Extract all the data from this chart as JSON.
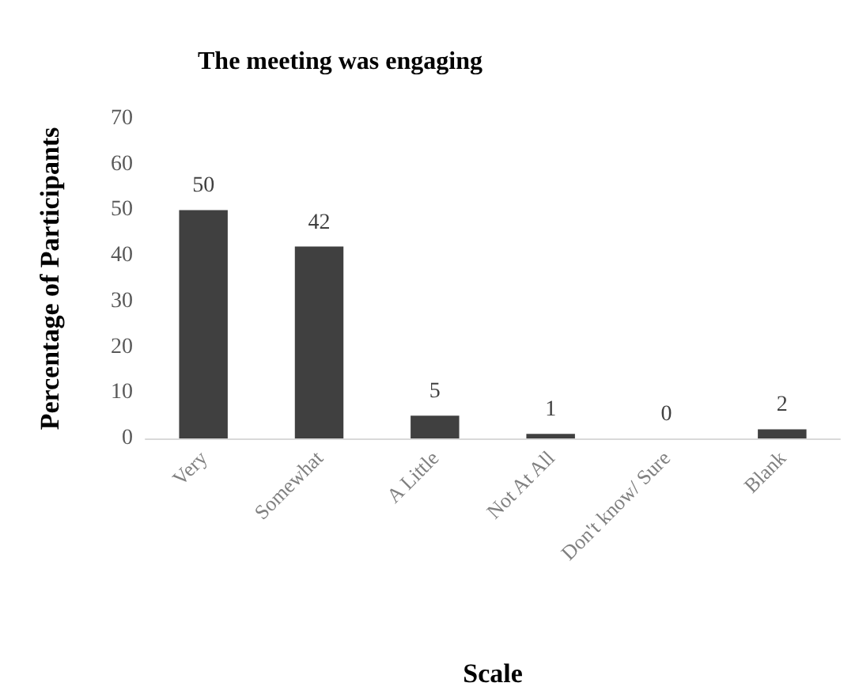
{
  "chart_data": {
    "type": "bar",
    "title": "The meeting was engaging",
    "xlabel": "Scale",
    "ylabel": "Percentage of Participants",
    "categories": [
      "Very",
      "Somewhat",
      "A Little",
      "Not At All",
      "Don't know/ Sure",
      "Blank"
    ],
    "values": [
      50,
      42,
      5,
      1,
      0,
      2
    ],
    "color": "#404040",
    "ylim": [
      0,
      70
    ],
    "yticks": [
      0,
      10,
      20,
      30,
      40,
      50,
      60,
      70
    ],
    "grid": false,
    "data_labels": true
  }
}
